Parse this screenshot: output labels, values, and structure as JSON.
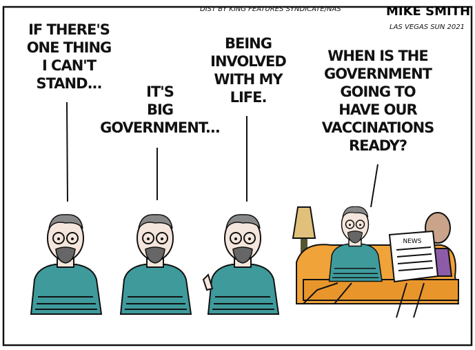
{
  "credit": {
    "syndicate": "DIST BY KING FEATURES SYNDICATE/NAS",
    "artist": "MIKE SMITH",
    "paper": "LAS VEGAS SUN 2021"
  },
  "panels": [
    {
      "lines": [
        "IF THERE'S",
        "ONE THING",
        "I CAN'T",
        "STAND..."
      ]
    },
    {
      "lines": [
        "IT'S",
        "BIG",
        "GOVERNMENT..."
      ]
    },
    {
      "lines": [
        "BEING",
        "INVOLVED",
        "WITH MY",
        "LIFE."
      ]
    },
    {
      "lines": [
        "WHEN IS THE",
        "GOVERNMENT",
        "GOING TO",
        "HAVE OUR",
        "VACCINATIONS",
        "READY?"
      ]
    }
  ],
  "newspaper": "NEWS"
}
